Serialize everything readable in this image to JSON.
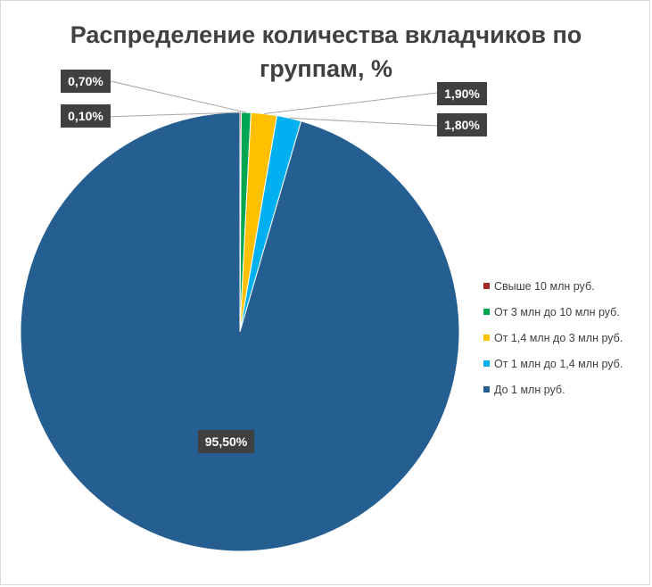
{
  "chart_data": {
    "type": "pie",
    "title": "Распределение количества вкладчиков по группам, %",
    "series": [
      {
        "name": "",
        "values": [
          0.1,
          0.7,
          1.9,
          1.8,
          95.5
        ]
      }
    ],
    "categories": [
      "Свыше 10 млн руб.",
      "От 3 млн до 10 млн руб.",
      "От 1,4 млн до 3 млн руб.",
      "От 1 млн до 1,4 млн руб.",
      "До 1 млн руб."
    ],
    "data_labels": [
      "0,10%",
      "0,70%",
      "1,90%",
      "1,80%",
      "95,50%"
    ],
    "colors": [
      "#a52a2a",
      "#00a651",
      "#ffc000",
      "#00b0f0",
      "#255e91"
    ],
    "legend_position": "right",
    "label_style": {
      "background": "#404040",
      "text_color": "#ffffff"
    }
  }
}
